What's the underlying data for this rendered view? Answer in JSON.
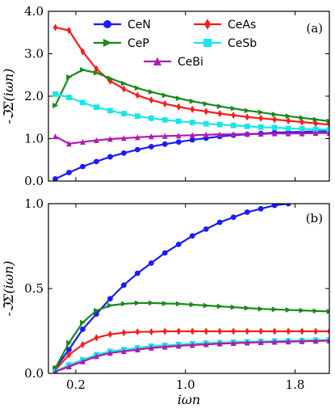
{
  "chart_data": [
    {
      "type": "line",
      "panel_label": "(a)",
      "ylabel": "-ℑΣ(iωn)",
      "xlabel": "",
      "xlim": [
        0.0,
        2.05
      ],
      "ylim": [
        0.0,
        4.0
      ],
      "yticks": [
        0.0,
        1.0,
        2.0,
        3.0,
        4.0
      ],
      "ytick_labels": [
        "0.0",
        "1.0",
        "2.0",
        "3.0",
        "4.0"
      ],
      "xticks": [
        0.2,
        1.0,
        1.8
      ],
      "xtick_labels": [
        "",
        "",
        ""
      ],
      "legend": {
        "placement": "top",
        "columns": 2
      },
      "series": [
        {
          "name": "CeN",
          "color": "#1a1aff",
          "marker": "circle",
          "x": [
            0.05,
            0.15,
            0.25,
            0.35,
            0.45,
            0.55,
            0.65,
            0.75,
            0.85,
            0.95,
            1.05,
            1.15,
            1.25,
            1.35,
            1.45,
            1.55,
            1.65,
            1.75,
            1.85,
            1.95,
            2.05
          ],
          "y": [
            0.05,
            0.2,
            0.34,
            0.46,
            0.57,
            0.66,
            0.74,
            0.81,
            0.87,
            0.92,
            0.97,
            1.01,
            1.05,
            1.08,
            1.1,
            1.12,
            1.14,
            1.15,
            1.16,
            1.17,
            1.17
          ]
        },
        {
          "name": "CeAs",
          "color": "#ff1a1a",
          "marker": "diamond",
          "x": [
            0.05,
            0.15,
            0.25,
            0.35,
            0.45,
            0.55,
            0.65,
            0.75,
            0.85,
            0.95,
            1.05,
            1.15,
            1.25,
            1.35,
            1.45,
            1.55,
            1.65,
            1.75,
            1.85,
            1.95,
            2.05
          ],
          "y": [
            3.62,
            3.55,
            3.05,
            2.64,
            2.36,
            2.17,
            2.02,
            1.91,
            1.82,
            1.75,
            1.69,
            1.64,
            1.59,
            1.55,
            1.51,
            1.48,
            1.45,
            1.42,
            1.39,
            1.36,
            1.33
          ]
        },
        {
          "name": "CeP",
          "color": "#1a8a1a",
          "marker": "triangle-right",
          "x": [
            0.05,
            0.15,
            0.25,
            0.35,
            0.45,
            0.55,
            0.65,
            0.75,
            0.85,
            0.95,
            1.05,
            1.15,
            1.25,
            1.35,
            1.45,
            1.55,
            1.65,
            1.75,
            1.85,
            1.95,
            2.05
          ],
          "y": [
            1.78,
            2.45,
            2.62,
            2.55,
            2.42,
            2.3,
            2.19,
            2.1,
            2.02,
            1.95,
            1.88,
            1.82,
            1.76,
            1.71,
            1.66,
            1.62,
            1.57,
            1.53,
            1.49,
            1.45,
            1.41
          ]
        },
        {
          "name": "CeSb",
          "color": "#19e6e6",
          "marker": "square",
          "x": [
            0.05,
            0.15,
            0.25,
            0.35,
            0.45,
            0.55,
            0.65,
            0.75,
            0.85,
            0.95,
            1.05,
            1.15,
            1.25,
            1.35,
            1.45,
            1.55,
            1.65,
            1.75,
            1.85,
            1.95,
            2.05
          ],
          "y": [
            2.05,
            1.97,
            1.85,
            1.74,
            1.66,
            1.59,
            1.53,
            1.48,
            1.44,
            1.41,
            1.38,
            1.35,
            1.33,
            1.31,
            1.29,
            1.27,
            1.26,
            1.24,
            1.23,
            1.22,
            1.21
          ]
        },
        {
          "name": "CeBi",
          "color": "#b01ab0",
          "marker": "triangle-up",
          "x": [
            0.05,
            0.15,
            0.25,
            0.35,
            0.45,
            0.55,
            0.65,
            0.75,
            0.85,
            0.95,
            1.05,
            1.15,
            1.25,
            1.35,
            1.45,
            1.55,
            1.65,
            1.75,
            1.85,
            1.95,
            2.05
          ],
          "y": [
            1.05,
            0.88,
            0.92,
            0.96,
            0.99,
            1.01,
            1.03,
            1.05,
            1.06,
            1.07,
            1.08,
            1.09,
            1.1,
            1.1,
            1.11,
            1.11,
            1.12,
            1.12,
            1.12,
            1.13,
            1.13
          ]
        }
      ]
    },
    {
      "type": "line",
      "panel_label": "(b)",
      "ylabel": "-ℑΣ(iωn)",
      "xlabel": "iωn",
      "xlim": [
        0.0,
        2.05
      ],
      "ylim": [
        0.0,
        1.0
      ],
      "yticks": [
        0.0,
        0.5,
        1.0
      ],
      "ytick_labels": [
        "0.0",
        "0.5",
        "1.0"
      ],
      "xticks": [
        0.2,
        1.0,
        1.8
      ],
      "xtick_labels": [
        "0.2",
        "1.0",
        "1.8"
      ],
      "series": [
        {
          "name": "CeN",
          "color": "#1a1aff",
          "marker": "circle",
          "x": [
            0.05,
            0.15,
            0.25,
            0.35,
            0.45,
            0.55,
            0.65,
            0.75,
            0.85,
            0.95,
            1.05,
            1.15,
            1.25,
            1.35,
            1.45,
            1.55,
            1.65,
            1.75
          ],
          "y": [
            0.03,
            0.14,
            0.26,
            0.35,
            0.44,
            0.52,
            0.59,
            0.65,
            0.71,
            0.76,
            0.81,
            0.85,
            0.89,
            0.92,
            0.95,
            0.97,
            0.99,
            1.0
          ]
        },
        {
          "name": "CeAs",
          "color": "#ff1a1a",
          "marker": "diamond",
          "x": [
            0.05,
            0.15,
            0.25,
            0.35,
            0.45,
            0.55,
            0.65,
            0.75,
            0.85,
            0.95,
            1.05,
            1.15,
            1.25,
            1.35,
            1.45,
            1.55,
            1.65,
            1.75,
            1.85,
            1.95,
            2.05
          ],
          "y": [
            0.02,
            0.11,
            0.17,
            0.21,
            0.23,
            0.24,
            0.245,
            0.245,
            0.248,
            0.248,
            0.248,
            0.248,
            0.248,
            0.248,
            0.248,
            0.248,
            0.248,
            0.248,
            0.248,
            0.248,
            0.248
          ]
        },
        {
          "name": "CeP",
          "color": "#1a8a1a",
          "marker": "triangle-right",
          "x": [
            0.05,
            0.15,
            0.25,
            0.35,
            0.45,
            0.55,
            0.65,
            0.75,
            0.85,
            0.95,
            1.05,
            1.15,
            1.25,
            1.35,
            1.45,
            1.55,
            1.65,
            1.75,
            1.85,
            1.95,
            2.05
          ],
          "y": [
            0.03,
            0.18,
            0.3,
            0.37,
            0.4,
            0.41,
            0.415,
            0.415,
            0.412,
            0.41,
            0.405,
            0.4,
            0.395,
            0.39,
            0.385,
            0.38,
            0.377,
            0.374,
            0.371,
            0.368,
            0.365
          ]
        },
        {
          "name": "CeSb",
          "color": "#19e6e6",
          "marker": "square",
          "x": [
            0.05,
            0.15,
            0.25,
            0.35,
            0.45,
            0.55,
            0.65,
            0.75,
            0.85,
            0.95,
            1.05,
            1.15,
            1.25,
            1.35,
            1.45,
            1.55,
            1.65,
            1.75,
            1.85,
            1.95,
            2.05
          ],
          "y": [
            0.01,
            0.05,
            0.08,
            0.11,
            0.13,
            0.14,
            0.15,
            0.16,
            0.165,
            0.17,
            0.175,
            0.178,
            0.181,
            0.184,
            0.186,
            0.188,
            0.19,
            0.192,
            0.194,
            0.196,
            0.198
          ]
        },
        {
          "name": "CeBi",
          "color": "#b01ab0",
          "marker": "triangle-up",
          "x": [
            0.05,
            0.15,
            0.25,
            0.35,
            0.45,
            0.55,
            0.65,
            0.75,
            0.85,
            0.95,
            1.05,
            1.15,
            1.25,
            1.35,
            1.45,
            1.55,
            1.65,
            1.75,
            1.85,
            1.95,
            2.05
          ],
          "y": [
            0.01,
            0.04,
            0.07,
            0.1,
            0.12,
            0.13,
            0.14,
            0.15,
            0.156,
            0.162,
            0.167,
            0.171,
            0.175,
            0.178,
            0.181,
            0.183,
            0.185,
            0.187,
            0.189,
            0.191,
            0.193
          ]
        }
      ]
    }
  ]
}
